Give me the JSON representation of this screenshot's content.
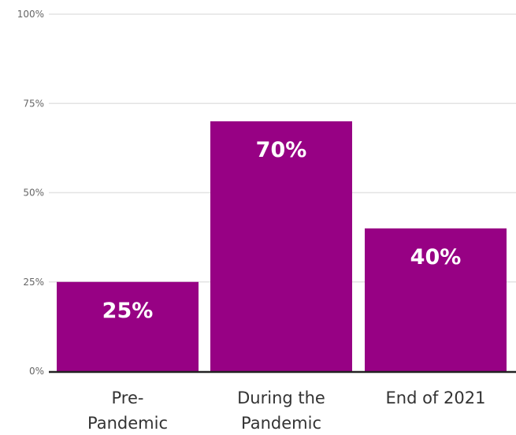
{
  "chart_data": {
    "type": "bar",
    "categories": [
      [
        "Pre-",
        "Pandemic"
      ],
      [
        "During the",
        "Pandemic"
      ],
      [
        "End of 2021"
      ]
    ],
    "values": [
      25,
      70,
      40
    ],
    "data_labels": [
      "25%",
      "70%",
      "40%"
    ],
    "y_ticks": [
      {
        "value": 0,
        "label": "0%"
      },
      {
        "value": 25,
        "label": "25%"
      },
      {
        "value": 50,
        "label": "50%"
      },
      {
        "value": 75,
        "label": "75%"
      },
      {
        "value": 100,
        "label": "100%"
      }
    ],
    "ylim": [
      0,
      100
    ],
    "grid": true,
    "legend": "none",
    "colors": {
      "bar": "#970184",
      "grid": "#e3e3e3",
      "axis": "#222222"
    }
  }
}
